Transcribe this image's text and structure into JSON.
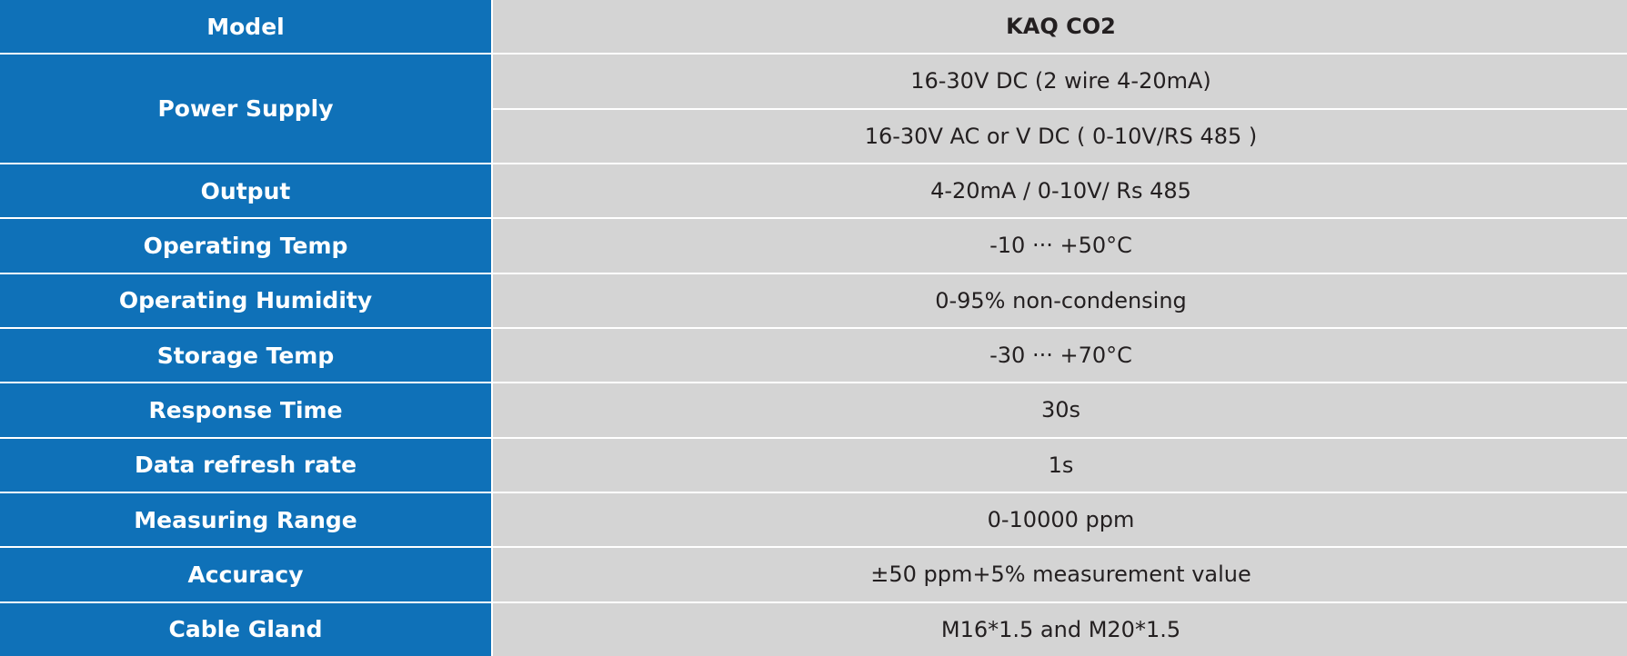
{
  "table": {
    "rows": [
      {
        "label": "Model",
        "values": [
          "KAQ CO2"
        ]
      },
      {
        "label": "Power Supply",
        "values": [
          "16-30V DC (2 wire 4-20mA)",
          "16-30V AC or V DC ( 0-10V/RS 485 )"
        ]
      },
      {
        "label": "Output",
        "values": [
          "4-20mA / 0-10V/ Rs 485"
        ]
      },
      {
        "label": "Operating Temp",
        "values": [
          "-10 ··· +50°C"
        ]
      },
      {
        "label": "Operating Humidity",
        "values": [
          "0-95% non-condensing"
        ]
      },
      {
        "label": "Storage Temp",
        "values": [
          "-30 ··· +70°C"
        ]
      },
      {
        "label": "Response Time",
        "values": [
          "30s"
        ]
      },
      {
        "label": "Data refresh rate",
        "values": [
          "1s"
        ]
      },
      {
        "label": "Measuring Range",
        "values": [
          "0-10000 ppm"
        ]
      },
      {
        "label": "Accuracy",
        "values": [
          "±50 ppm+5% measurement value"
        ]
      },
      {
        "label": "Cable Gland",
        "values": [
          "M16*1.5 and M20*1.5"
        ]
      }
    ]
  }
}
